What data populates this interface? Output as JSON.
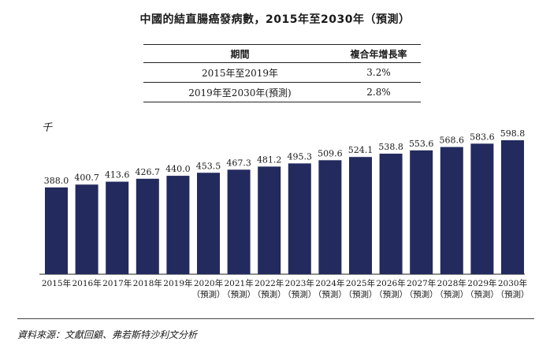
{
  "title": "中國的結直腸癌發病數，2015年至2030年（預測）",
  "cagr_table": {
    "headers": [
      "期間",
      "複合年增長率"
    ],
    "rows": [
      [
        "2015年至2019年",
        "3.2%"
      ],
      [
        "2019年至2030年(預測)",
        "2.8%"
      ]
    ]
  },
  "unit_label": "千",
  "source": "資料來源：文獻回顧、弗若斯特沙利文分析",
  "colors": {
    "bar": "#232a5e"
  },
  "chart_data": {
    "type": "bar",
    "title": "中國的結直腸癌發病數，2015年至2030年（預測）",
    "ylabel": "千",
    "xlabel": "",
    "categories": [
      "2015年",
      "2016年",
      "2017年",
      "2018年",
      "2019年",
      "2020年",
      "2021年",
      "2022年",
      "2023年",
      "2024年",
      "2025年",
      "2026年",
      "2027年",
      "2028年",
      "2029年",
      "2030年"
    ],
    "category_notes": [
      "",
      "",
      "",
      "",
      "",
      "（預測）",
      "（預測）",
      "（預測）",
      "（預測）",
      "（預測）",
      "（預測）",
      "（預測）",
      "（預測）",
      "（預測）",
      "（預測）",
      "（預測）"
    ],
    "values": [
      388.0,
      400.7,
      413.6,
      426.7,
      440.0,
      453.5,
      467.3,
      481.2,
      495.3,
      509.6,
      524.1,
      538.8,
      553.6,
      568.6,
      583.6,
      598.8
    ],
    "value_labels": [
      "388.0",
      "400.7",
      "413.6",
      "426.7",
      "440.0",
      "453.5",
      "467.3",
      "481.2",
      "495.3",
      "509.6",
      "524.1",
      "538.8",
      "553.6",
      "568.6",
      "583.6",
      "598.8"
    ],
    "ylim": [
      0,
      640
    ],
    "grid": false,
    "legend": "none"
  }
}
